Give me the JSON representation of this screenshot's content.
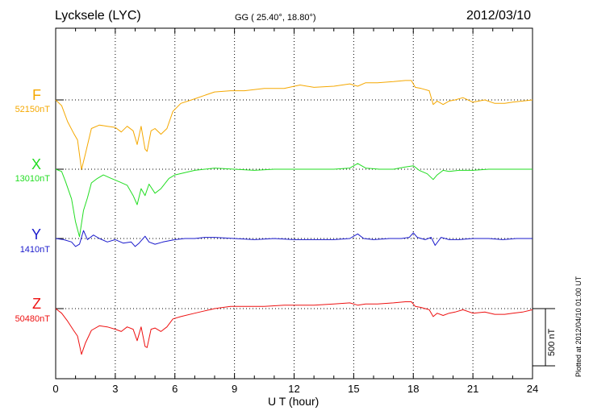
{
  "header": {
    "station": "Lycksele (LYC)",
    "coords": "GG ( 25.40°,  18.80°)",
    "date": "2012/03/10"
  },
  "footer": {
    "plotted": "Plotted at 2012/04/10 01:00 UT",
    "scale_label": "500 nT"
  },
  "chart_data": {
    "type": "line",
    "xlabel": "U T (hour)",
    "xlim": [
      0,
      24
    ],
    "xticks": [
      "0",
      "3",
      "6",
      "9",
      "12",
      "15",
      "18",
      "21",
      "24"
    ],
    "scale_bar_nT": 500,
    "grid": "dotted vertical every 3 h",
    "series": [
      {
        "name": "F",
        "baseline_label": "52150nT",
        "baseline_nT": 52150,
        "color": "#f5a800",
        "x": [
          0,
          0.3,
          0.6,
          0.9,
          1.1,
          1.3,
          1.5,
          1.8,
          2.2,
          2.6,
          3.0,
          3.3,
          3.6,
          3.9,
          4.1,
          4.3,
          4.5,
          4.6,
          4.8,
          5.0,
          5.3,
          5.6,
          5.9,
          6.3,
          7.0,
          7.5,
          8.0,
          8.8,
          9.5,
          10.5,
          11.5,
          12.3,
          13.0,
          14.0,
          14.8,
          15.2,
          15.6,
          16.2,
          17.0,
          17.6,
          17.9,
          18.1,
          18.4,
          18.8,
          19.0,
          19.2,
          19.5,
          19.8,
          20.1,
          20.5,
          21.0,
          21.6,
          22.1,
          22.6,
          23.0,
          23.5,
          24
        ],
        "y": [
          52150,
          52100,
          51960,
          51860,
          51800,
          51540,
          51680,
          51900,
          51930,
          51920,
          51910,
          51870,
          51920,
          51880,
          51760,
          51920,
          51720,
          51700,
          51880,
          51900,
          51850,
          51900,
          52050,
          52120,
          52160,
          52190,
          52220,
          52230,
          52230,
          52250,
          52250,
          52280,
          52260,
          52270,
          52290,
          52270,
          52300,
          52300,
          52310,
          52320,
          52320,
          52260,
          52250,
          52230,
          52110,
          52140,
          52110,
          52140,
          52150,
          52170,
          52130,
          52150,
          52120,
          52120,
          52130,
          52140,
          52150
        ]
      },
      {
        "name": "X",
        "baseline_label": "13010nT",
        "baseline_nT": 13010,
        "color": "#22dd22",
        "x": [
          0,
          0.3,
          0.5,
          0.8,
          1.0,
          1.2,
          1.4,
          1.6,
          1.8,
          2.1,
          2.4,
          2.8,
          3.2,
          3.6,
          3.9,
          4.1,
          4.3,
          4.5,
          4.7,
          5.0,
          5.3,
          5.7,
          6.0,
          6.5,
          7.0,
          7.5,
          8.0,
          9.0,
          10.0,
          11.0,
          12.0,
          13.0,
          14.0,
          14.8,
          15.2,
          15.6,
          16.3,
          17.0,
          17.6,
          18.0,
          18.3,
          18.7,
          19.0,
          19.2,
          19.5,
          19.8,
          20.3,
          21.0,
          21.8,
          22.5,
          23.2,
          24
        ],
        "y": [
          13010,
          12990,
          12900,
          12750,
          12550,
          12420,
          12650,
          12760,
          12890,
          12930,
          12960,
          12930,
          12900,
          12870,
          12780,
          12700,
          12840,
          12780,
          12880,
          12800,
          12840,
          12930,
          12960,
          12980,
          13000,
          13010,
          13020,
          13010,
          13000,
          13010,
          13010,
          13010,
          13010,
          13020,
          13060,
          13020,
          13010,
          13010,
          13030,
          13040,
          13000,
          12970,
          12920,
          12960,
          13000,
          12990,
          13000,
          13000,
          13010,
          13010,
          13010,
          13010
        ]
      },
      {
        "name": "Y",
        "baseline_label": "1410nT",
        "baseline_nT": 1410,
        "color": "#1a1acc",
        "x": [
          0,
          0.4,
          0.8,
          1.0,
          1.2,
          1.4,
          1.6,
          1.9,
          2.2,
          2.6,
          3.0,
          3.4,
          3.8,
          4.0,
          4.2,
          4.5,
          4.7,
          5.0,
          5.4,
          6.0,
          6.5,
          7.0,
          7.5,
          8.0,
          9.0,
          10.0,
          11.0,
          12.0,
          13.0,
          14.0,
          14.8,
          15.2,
          15.5,
          16.0,
          16.8,
          17.4,
          17.8,
          18.0,
          18.2,
          18.6,
          18.9,
          19.1,
          19.4,
          19.8,
          20.3,
          21.0,
          21.8,
          22.5,
          23.2,
          24
        ],
        "y": [
          1410,
          1400,
          1380,
          1340,
          1360,
          1480,
          1400,
          1440,
          1410,
          1380,
          1400,
          1370,
          1380,
          1340,
          1370,
          1430,
          1380,
          1360,
          1380,
          1400,
          1410,
          1410,
          1420,
          1420,
          1410,
          1400,
          1410,
          1400,
          1400,
          1400,
          1410,
          1450,
          1410,
          1400,
          1410,
          1410,
          1420,
          1460,
          1420,
          1400,
          1420,
          1350,
          1420,
          1400,
          1400,
          1410,
          1410,
          1400,
          1410,
          1410
        ]
      },
      {
        "name": "Z",
        "baseline_label": "50480nT",
        "baseline_nT": 50480,
        "color": "#ee1111",
        "x": [
          0,
          0.3,
          0.6,
          0.9,
          1.1,
          1.3,
          1.5,
          1.8,
          2.2,
          2.6,
          3.0,
          3.3,
          3.6,
          3.9,
          4.1,
          4.3,
          4.5,
          4.6,
          4.8,
          5.0,
          5.3,
          5.6,
          5.9,
          6.3,
          7.0,
          7.5,
          8.0,
          8.8,
          9.5,
          10.5,
          11.5,
          12.3,
          13.0,
          14.0,
          14.8,
          15.2,
          15.6,
          16.2,
          17.0,
          17.6,
          17.9,
          18.1,
          18.4,
          18.8,
          19.0,
          19.2,
          19.5,
          19.8,
          20.1,
          20.5,
          21.0,
          21.6,
          22.1,
          22.6,
          23.0,
          23.5,
          24
        ],
        "y": [
          50480,
          50440,
          50370,
          50290,
          50240,
          50080,
          50180,
          50290,
          50330,
          50320,
          50300,
          50280,
          50320,
          50300,
          50200,
          50320,
          50150,
          50140,
          50300,
          50310,
          50280,
          50320,
          50390,
          50410,
          50440,
          50460,
          50480,
          50500,
          50500,
          50500,
          50510,
          50510,
          50510,
          50520,
          50530,
          50510,
          50520,
          50520,
          50530,
          50540,
          50540,
          50500,
          50490,
          50470,
          50410,
          50440,
          50420,
          50440,
          50450,
          50470,
          50440,
          50450,
          50430,
          50430,
          50440,
          50450,
          50470
        ]
      }
    ]
  }
}
